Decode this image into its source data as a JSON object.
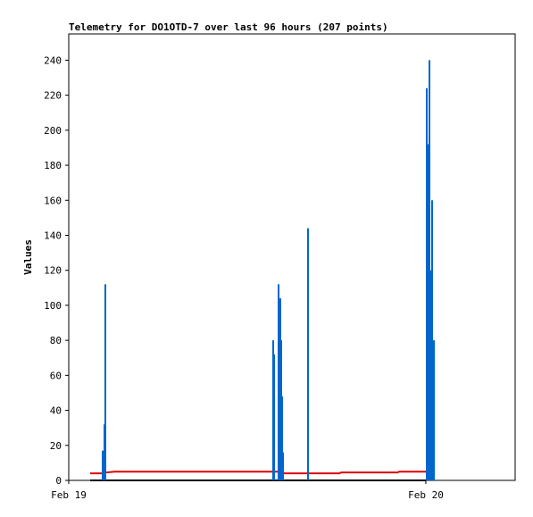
{
  "chart_data": {
    "type": "line",
    "title": "Telemetry for DO1OTD-7 over last 96 hours (207 points)",
    "y_label": "Values",
    "xlim": [
      0,
      30
    ],
    "xticks": [
      {
        "value": 0,
        "label": "Feb 19"
      },
      {
        "value": 24,
        "label": "Feb 20"
      }
    ],
    "ylim": [
      0,
      255
    ],
    "yticks": [
      0,
      20,
      40,
      60,
      80,
      100,
      120,
      140,
      160,
      180,
      200,
      220,
      240
    ],
    "grid": false,
    "series": [
      {
        "color": "#000000",
        "mode": "line",
        "x": [
          1.44,
          24.0
        ],
        "values": [
          0,
          0
        ]
      },
      {
        "color": "#dd0000",
        "mode": "line",
        "x": [
          1.44,
          2.3,
          2.5,
          3.1,
          14.3,
          14.5,
          18.2,
          18.3,
          22.1,
          22.2,
          24.4
        ],
        "values": [
          4,
          4,
          4.5,
          5,
          5,
          4,
          4,
          4.5,
          4.5,
          5,
          5
        ]
      },
      {
        "color": "#0066cc",
        "mode": "impulse",
        "x": [
          2.28,
          2.4,
          2.46,
          13.74,
          13.8,
          14.1,
          14.16,
          14.22,
          14.28,
          14.34,
          14.4,
          16.08,
          24.06,
          24.12,
          24.18,
          24.24,
          24.3,
          24.42,
          24.54
        ],
        "values": [
          17,
          32,
          112,
          80,
          72,
          112,
          56,
          104,
          80,
          48,
          16,
          144,
          224,
          96,
          192,
          240,
          120,
          160,
          80
        ]
      }
    ]
  }
}
